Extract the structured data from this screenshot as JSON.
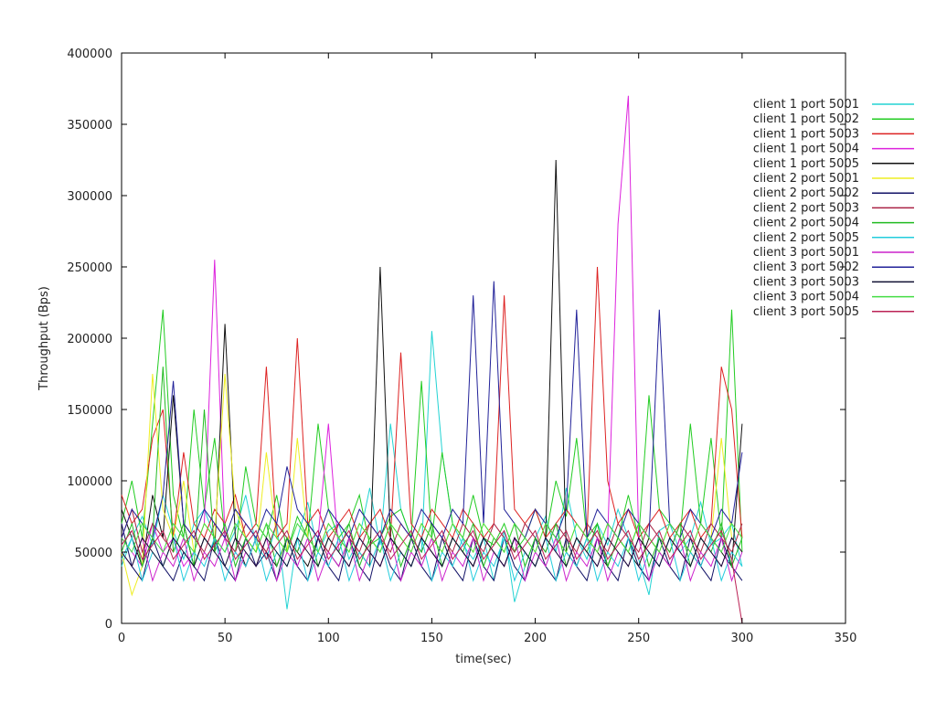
{
  "chart_data": {
    "type": "line",
    "title": "",
    "xlabel": "time(sec)",
    "ylabel": "Throughput (Bps)",
    "xlim": [
      0,
      350
    ],
    "ylim": [
      0,
      400000
    ],
    "x_ticks": [
      0,
      50,
      100,
      150,
      200,
      250,
      300,
      350
    ],
    "y_ticks": [
      0,
      50000,
      100000,
      150000,
      200000,
      250000,
      300000,
      350000,
      400000
    ],
    "grid": false,
    "legend_position": "top-right",
    "x": [
      0,
      5,
      10,
      15,
      20,
      25,
      30,
      35,
      40,
      45,
      50,
      55,
      60,
      65,
      70,
      75,
      80,
      85,
      90,
      95,
      100,
      105,
      110,
      115,
      120,
      125,
      130,
      135,
      140,
      145,
      150,
      155,
      160,
      165,
      170,
      175,
      180,
      185,
      190,
      195,
      200,
      205,
      210,
      215,
      220,
      225,
      230,
      235,
      240,
      245,
      250,
      255,
      260,
      265,
      270,
      275,
      280,
      285,
      290,
      295,
      300
    ],
    "series": [
      {
        "name": "client 1 port  5001",
        "color": "#22d3d3",
        "values": [
          40000,
          60000,
          75000,
          55000,
          90000,
          65000,
          45000,
          70000,
          80000,
          60000,
          50000,
          65000,
          90000,
          55000,
          45000,
          70000,
          10000,
          60000,
          85000,
          50000,
          65000,
          70000,
          45000,
          60000,
          95000,
          55000,
          140000,
          80000,
          60000,
          50000,
          205000,
          120000,
          70000,
          55000,
          45000,
          60000,
          30000,
          65000,
          15000,
          40000,
          60000,
          75000,
          50000,
          95000,
          60000,
          45000,
          70000,
          55000,
          80000,
          60000,
          45000,
          20000,
          65000,
          70000,
          50000,
          60000,
          85000,
          55000,
          60000,
          70000,
          40000
        ]
      },
      {
        "name": "client 1 port  5002",
        "color": "#22cc22",
        "values": [
          70000,
          100000,
          60000,
          140000,
          220000,
          90000,
          60000,
          150000,
          80000,
          130000,
          60000,
          50000,
          110000,
          70000,
          60000,
          90000,
          50000,
          75000,
          60000,
          140000,
          80000,
          60000,
          70000,
          90000,
          55000,
          60000,
          75000,
          80000,
          60000,
          170000,
          60000,
          120000,
          70000,
          60000,
          90000,
          60000,
          55000,
          70000,
          50000,
          60000,
          80000,
          60000,
          100000,
          75000,
          130000,
          60000,
          70000,
          40000,
          60000,
          90000,
          60000,
          160000,
          80000,
          70000,
          60000,
          140000,
          70000,
          130000,
          60000,
          220000,
          50000
        ]
      },
      {
        "name": "client 1 port  5003",
        "color": "#dd2222",
        "values": [
          90000,
          70000,
          80000,
          130000,
          150000,
          60000,
          120000,
          70000,
          60000,
          80000,
          70000,
          90000,
          60000,
          70000,
          180000,
          60000,
          70000,
          200000,
          70000,
          80000,
          60000,
          70000,
          80000,
          60000,
          70000,
          80000,
          60000,
          190000,
          70000,
          60000,
          80000,
          70000,
          60000,
          80000,
          70000,
          60000,
          70000,
          230000,
          80000,
          70000,
          80000,
          60000,
          70000,
          80000,
          70000,
          60000,
          250000,
          100000,
          70000,
          80000,
          60000,
          70000,
          80000,
          60000,
          70000,
          80000,
          60000,
          70000,
          180000,
          150000,
          60000
        ]
      },
      {
        "name": "client 1 port  5004",
        "color": "#dd22dd",
        "values": [
          60000,
          50000,
          40000,
          70000,
          50000,
          60000,
          40000,
          50000,
          70000,
          255000,
          60000,
          50000,
          40000,
          60000,
          50000,
          40000,
          60000,
          50000,
          70000,
          60000,
          140000,
          50000,
          40000,
          60000,
          50000,
          40000,
          60000,
          50000,
          40000,
          60000,
          50000,
          40000,
          60000,
          50000,
          40000,
          60000,
          50000,
          40000,
          60000,
          50000,
          40000,
          60000,
          50000,
          40000,
          60000,
          50000,
          40000,
          60000,
          280000,
          370000,
          60000,
          50000,
          40000,
          60000,
          50000,
          40000,
          60000,
          50000,
          40000,
          60000,
          50000
        ]
      },
      {
        "name": "client 1 port  5005",
        "color": "#111111",
        "values": [
          80000,
          60000,
          40000,
          90000,
          60000,
          160000,
          70000,
          40000,
          60000,
          50000,
          210000,
          60000,
          40000,
          60000,
          50000,
          40000,
          60000,
          50000,
          40000,
          60000,
          50000,
          40000,
          60000,
          50000,
          40000,
          250000,
          60000,
          50000,
          40000,
          60000,
          50000,
          40000,
          60000,
          50000,
          40000,
          60000,
          50000,
          40000,
          60000,
          50000,
          40000,
          60000,
          325000,
          50000,
          40000,
          60000,
          50000,
          40000,
          60000,
          50000,
          40000,
          60000,
          50000,
          40000,
          60000,
          50000,
          40000,
          60000,
          50000,
          40000,
          140000
        ]
      },
      {
        "name": "client 2 port  5001",
        "color": "#eeee22",
        "values": [
          50000,
          20000,
          40000,
          175000,
          80000,
          60000,
          100000,
          50000,
          70000,
          60000,
          175000,
          80000,
          60000,
          50000,
          120000,
          60000,
          50000,
          130000,
          60000,
          50000,
          70000,
          60000,
          50000,
          70000,
          60000,
          50000,
          70000,
          60000,
          50000,
          70000,
          60000,
          50000,
          70000,
          60000,
          50000,
          70000,
          60000,
          50000,
          70000,
          60000,
          50000,
          70000,
          60000,
          50000,
          70000,
          60000,
          50000,
          70000,
          60000,
          50000,
          70000,
          60000,
          50000,
          70000,
          60000,
          50000,
          70000,
          60000,
          130000,
          60000,
          50000
        ]
      },
      {
        "name": "client 2 port  5002",
        "color": "#111166",
        "values": [
          70000,
          40000,
          30000,
          60000,
          40000,
          30000,
          50000,
          40000,
          30000,
          60000,
          40000,
          30000,
          60000,
          40000,
          50000,
          30000,
          60000,
          40000,
          30000,
          60000,
          40000,
          30000,
          60000,
          40000,
          30000,
          60000,
          40000,
          30000,
          60000,
          40000,
          30000,
          60000,
          40000,
          30000,
          60000,
          40000,
          30000,
          60000,
          40000,
          30000,
          60000,
          40000,
          30000,
          60000,
          40000,
          30000,
          60000,
          40000,
          30000,
          60000,
          40000,
          30000,
          60000,
          40000,
          30000,
          60000,
          40000,
          30000,
          60000,
          40000,
          30000
        ]
      },
      {
        "name": "client 2 port  5003",
        "color": "#aa2244",
        "values": [
          60000,
          80000,
          50000,
          70000,
          60000,
          50000,
          70000,
          60000,
          50000,
          70000,
          60000,
          50000,
          70000,
          60000,
          50000,
          70000,
          60000,
          50000,
          70000,
          60000,
          50000,
          70000,
          60000,
          50000,
          70000,
          60000,
          50000,
          70000,
          60000,
          50000,
          70000,
          60000,
          50000,
          70000,
          60000,
          50000,
          70000,
          60000,
          50000,
          70000,
          60000,
          50000,
          70000,
          60000,
          50000,
          70000,
          60000,
          50000,
          70000,
          60000,
          50000,
          70000,
          60000,
          50000,
          70000,
          60000,
          50000,
          70000,
          60000,
          50000,
          70000
        ]
      },
      {
        "name": "client 2 port  5004",
        "color": "#22bb22",
        "values": [
          50000,
          70000,
          40000,
          60000,
          180000,
          50000,
          70000,
          40000,
          150000,
          50000,
          70000,
          40000,
          60000,
          50000,
          70000,
          40000,
          60000,
          50000,
          70000,
          40000,
          60000,
          50000,
          70000,
          40000,
          60000,
          50000,
          70000,
          40000,
          60000,
          50000,
          70000,
          40000,
          60000,
          50000,
          70000,
          40000,
          60000,
          50000,
          70000,
          40000,
          60000,
          50000,
          70000,
          40000,
          60000,
          50000,
          70000,
          40000,
          60000,
          50000,
          70000,
          40000,
          60000,
          50000,
          70000,
          40000,
          60000,
          50000,
          70000,
          40000,
          60000
        ]
      },
      {
        "name": "client 2 port  5005",
        "color": "#22ccdd",
        "values": [
          45000,
          60000,
          30000,
          50000,
          40000,
          60000,
          30000,
          50000,
          40000,
          60000,
          30000,
          50000,
          40000,
          60000,
          30000,
          50000,
          40000,
          60000,
          30000,
          50000,
          40000,
          60000,
          30000,
          50000,
          40000,
          60000,
          30000,
          50000,
          40000,
          60000,
          30000,
          50000,
          40000,
          60000,
          30000,
          50000,
          40000,
          60000,
          30000,
          50000,
          40000,
          60000,
          30000,
          50000,
          40000,
          60000,
          30000,
          50000,
          40000,
          60000,
          30000,
          50000,
          40000,
          60000,
          30000,
          50000,
          40000,
          60000,
          30000,
          50000,
          40000
        ]
      },
      {
        "name": "client 3 port  5001",
        "color": "#cc22cc",
        "values": [
          50000,
          40000,
          60000,
          30000,
          50000,
          40000,
          60000,
          30000,
          50000,
          40000,
          60000,
          30000,
          50000,
          40000,
          60000,
          30000,
          50000,
          40000,
          60000,
          30000,
          50000,
          40000,
          60000,
          30000,
          50000,
          40000,
          60000,
          30000,
          50000,
          40000,
          60000,
          30000,
          50000,
          40000,
          60000,
          30000,
          50000,
          40000,
          60000,
          30000,
          50000,
          40000,
          60000,
          30000,
          50000,
          40000,
          60000,
          30000,
          50000,
          40000,
          60000,
          30000,
          50000,
          40000,
          60000,
          30000,
          50000,
          40000,
          60000,
          30000,
          50000
        ]
      },
      {
        "name": "client 3 port  5002",
        "color": "#222299",
        "values": [
          60000,
          80000,
          70000,
          60000,
          90000,
          170000,
          70000,
          60000,
          80000,
          70000,
          60000,
          80000,
          70000,
          60000,
          80000,
          70000,
          110000,
          80000,
          70000,
          60000,
          80000,
          70000,
          60000,
          80000,
          70000,
          60000,
          80000,
          70000,
          60000,
          80000,
          70000,
          60000,
          80000,
          70000,
          230000,
          70000,
          240000,
          80000,
          70000,
          60000,
          80000,
          70000,
          60000,
          80000,
          220000,
          60000,
          80000,
          70000,
          60000,
          80000,
          70000,
          60000,
          220000,
          70000,
          60000,
          80000,
          70000,
          60000,
          80000,
          70000,
          120000
        ]
      },
      {
        "name": "client 3 port  5003",
        "color": "#111133",
        "values": [
          50000,
          40000,
          60000,
          50000,
          40000,
          60000,
          50000,
          40000,
          60000,
          50000,
          40000,
          60000,
          50000,
          40000,
          60000,
          50000,
          40000,
          60000,
          50000,
          40000,
          60000,
          50000,
          40000,
          60000,
          50000,
          40000,
          60000,
          50000,
          40000,
          60000,
          50000,
          40000,
          60000,
          50000,
          40000,
          60000,
          50000,
          40000,
          60000,
          50000,
          40000,
          60000,
          50000,
          40000,
          60000,
          50000,
          40000,
          60000,
          50000,
          40000,
          60000,
          50000,
          40000,
          60000,
          50000,
          40000,
          60000,
          50000,
          40000,
          60000,
          50000
        ]
      },
      {
        "name": "client 3 port  5004",
        "color": "#44dd44",
        "values": [
          60000,
          50000,
          70000,
          60000,
          50000,
          70000,
          60000,
          50000,
          70000,
          60000,
          50000,
          70000,
          60000,
          50000,
          70000,
          60000,
          50000,
          70000,
          60000,
          50000,
          70000,
          60000,
          50000,
          70000,
          60000,
          50000,
          70000,
          60000,
          50000,
          70000,
          60000,
          50000,
          70000,
          60000,
          50000,
          70000,
          60000,
          50000,
          70000,
          60000,
          50000,
          70000,
          60000,
          50000,
          70000,
          60000,
          50000,
          70000,
          60000,
          50000,
          70000,
          60000,
          50000,
          70000,
          60000,
          50000,
          70000,
          60000,
          50000,
          70000,
          60000
        ]
      },
      {
        "name": "client 3 port  5005",
        "color": "#bb2255",
        "values": [
          55000,
          65000,
          45000,
          55000,
          65000,
          45000,
          55000,
          65000,
          45000,
          55000,
          65000,
          45000,
          55000,
          65000,
          45000,
          55000,
          65000,
          45000,
          55000,
          65000,
          45000,
          55000,
          65000,
          45000,
          55000,
          65000,
          45000,
          55000,
          65000,
          45000,
          55000,
          65000,
          45000,
          55000,
          65000,
          45000,
          55000,
          65000,
          45000,
          55000,
          65000,
          45000,
          55000,
          65000,
          45000,
          55000,
          65000,
          45000,
          55000,
          65000,
          45000,
          55000,
          65000,
          45000,
          55000,
          65000,
          45000,
          55000,
          65000,
          45000,
          0
        ]
      }
    ]
  }
}
